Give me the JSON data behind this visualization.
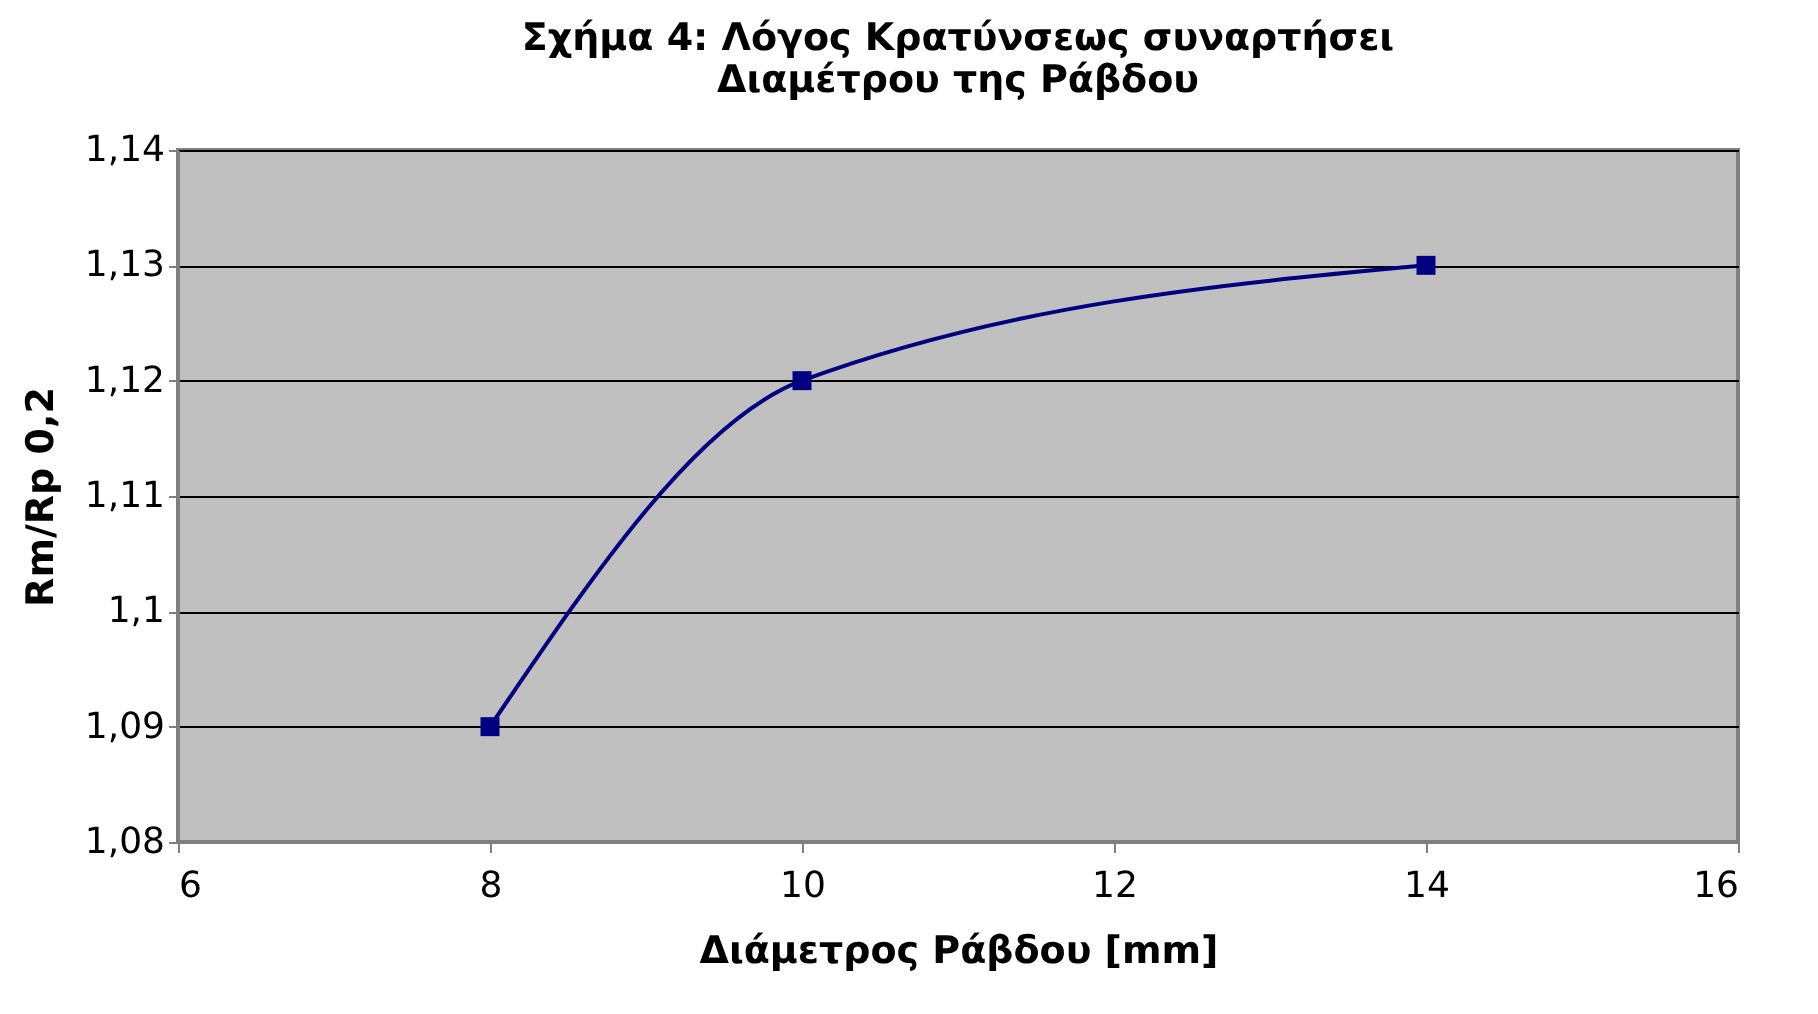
{
  "chart_data": {
    "type": "line",
    "title": [
      "Σχήμα 4: Λόγος Κρατύνσεως συναρτήσει",
      "Διαμέτρου της Ράβδου"
    ],
    "xlabel": "Διάμετρος Ράβδου [mm]",
    "ylabel": "Rm/Rp 0,2",
    "x": [
      8,
      10,
      14
    ],
    "series": [
      {
        "color": "#000080",
        "values": [
          1.09,
          1.12,
          1.13
        ]
      }
    ],
    "xlim": [
      6,
      16
    ],
    "xticks": [
      6,
      8,
      10,
      12,
      14,
      16
    ],
    "ylim": [
      1.08,
      1.14
    ],
    "yticks": [
      {
        "value": 1.08,
        "label": "1,08"
      },
      {
        "value": 1.09,
        "label": "1,09"
      },
      {
        "value": 1.1,
        "label": "1,1"
      },
      {
        "value": 1.11,
        "label": "1,11"
      },
      {
        "value": 1.12,
        "label": "1,12"
      },
      {
        "value": 1.13,
        "label": "1,13"
      },
      {
        "value": 1.14,
        "label": "1,14"
      }
    ],
    "grid": "y",
    "marker": "square",
    "line_style": "solid"
  }
}
